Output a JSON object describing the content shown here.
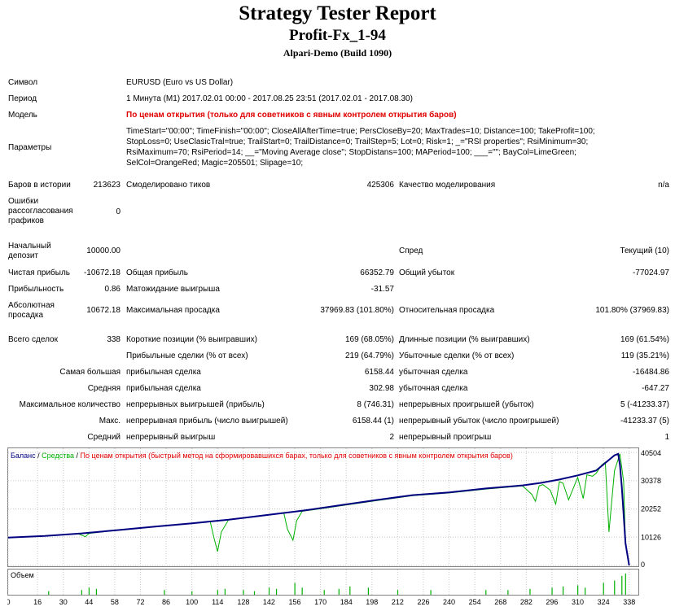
{
  "header": {
    "title": "Strategy Tester Report",
    "subtitle": "Profit-Fx_1-94",
    "server": "Alpari-Demo (Build 1090)"
  },
  "info": {
    "symbol_label": "Символ",
    "symbol_value": "EURUSD (Euro vs US Dollar)",
    "period_label": "Период",
    "period_value": "1 Минута (M1) 2017.02.01 00:00 - 2017.08.25 23:51 (2017.02.01 - 2017.08.30)",
    "model_label": "Модель",
    "model_value": "По ценам открытия (только для советников с явным контролем открытия баров)",
    "params_label": "Параметры",
    "params_line1": "TimeStart=\"00:00\"; TimeFinish=\"00:00\"; CloseAllAfterTime=true; PersCloseBy=20; MaxTrades=10; Distance=100; TakeProfit=100;",
    "params_line2": "StopLoss=0; UseClasicTral=true; TrailStart=0; TrailDistance=0; TrailStep=5; Lot=0; Risk=1; _=\"RSI properties\"; RsiMinimum=30;",
    "params_line3": "RsiMaximum=70; RsiPeriod=14; __=\"Moving Average close\"; StopDistans=100; MAPeriod=100; ___=\"\"; BayCol=LimeGreen;",
    "params_line4": "SelCol=OrangeRed; Magic=205501; Slipage=10;"
  },
  "stats": {
    "bars_label": "Баров в истории",
    "bars_value": "213623",
    "ticks_label": "Смоделировано тиков",
    "ticks_value": "425306",
    "quality_label": "Качество моделирования",
    "quality_value": "n/a",
    "errors_label_1": "Ошибки",
    "errors_label_2": "рассогласования",
    "errors_label_3": "графиков",
    "errors_value": "0",
    "deposit_label_1": "Начальный",
    "deposit_label_2": "депозит",
    "deposit_value": "10000.00",
    "spread_label": "Спред",
    "spread_value": "Текущий (10)",
    "net_label": "Чистая прибыль",
    "net_value": "-10672.18",
    "gross_profit_label": "Общая прибыль",
    "gross_profit_value": "66352.79",
    "gross_loss_label": "Общий убыток",
    "gross_loss_value": "-77024.97",
    "pf_label": "Прибыльность",
    "pf_value": "0.86",
    "expected_label": "Матожидание выигрыша",
    "expected_value": "-31.57",
    "abs_dd_label_1": "Абсолютная",
    "abs_dd_label_2": "просадка",
    "abs_dd_value": "10672.18",
    "max_dd_label": "Максимальная просадка",
    "max_dd_value": "37969.83 (101.80%)",
    "rel_dd_label": "Относительная просадка",
    "rel_dd_value": "101.80% (37969.83)",
    "total_trades_label": "Всего сделок",
    "total_trades_value": "338",
    "short_label": "Короткие позиции (% выигравших)",
    "short_value": "169 (68.05%)",
    "long_label": "Длинные позиции (% выигравших)",
    "long_value": "169 (61.54%)",
    "profit_trades_label": "Прибыльные сделки (% от всех)",
    "profit_trades_value": "219 (64.79%)",
    "loss_trades_label": "Убыточные сделки (% от всех)",
    "loss_trades_value": "119 (35.21%)",
    "largest_label": "Самая большая",
    "largest_profit_label": "прибыльная сделка",
    "largest_profit_value": "6158.44",
    "largest_loss_label": "убыточная сделка",
    "largest_loss_value": "-16484.86",
    "average_label": "Средняя",
    "average_profit_label": "прибыльная сделка",
    "average_profit_value": "302.98",
    "average_loss_label": "убыточная сделка",
    "average_loss_value": "-647.27",
    "maxcount_label": "Максимальное количество",
    "maxcount_wins_label": "непрерывных выигрышей (прибыль)",
    "maxcount_wins_value": "8 (746.31)",
    "maxcount_losses_label": "непрерывных проигрышей (убыток)",
    "maxcount_losses_value": "5 (-41233.37)",
    "max_label": "Макс.",
    "max_profit_label": "непрерывная прибыль (число выигрышей)",
    "max_profit_value": "6158.44 (1)",
    "max_loss_label": "непрерывный убыток (число проигрышей)",
    "max_loss_value": "-41233.37 (5)",
    "avg_label": "Средний",
    "avg_wins_label": "непрерывный выигрыш",
    "avg_wins_value": "2",
    "avg_losses_label": "непрерывный проигрыш",
    "avg_losses_value": "1"
  },
  "chart_data": {
    "type": "line",
    "legend_balance": "Баланс",
    "legend_sep": " / ",
    "legend_equity": "Средства",
    "legend_model": "По ценам открытия (быстрый метод на сформировавшихся барах, только для советников с явным контролем открытия баров)",
    "volume_label": "Объем",
    "colors": {
      "balance": "#000080",
      "equity": "#00b000",
      "model": "#e00000",
      "grid": "#c8c8c8",
      "volume": "#00b000"
    },
    "ylim": [
      0,
      42000
    ],
    "xlim": [
      0,
      343
    ],
    "y_ticks": [
      "40504",
      "30378",
      "20252",
      "10126",
      "0"
    ],
    "y_tick_values": [
      40504,
      30378,
      20252,
      10126,
      0
    ],
    "x_ticks": [
      "0",
      "16",
      "30",
      "44",
      "58",
      "72",
      "86",
      "100",
      "114",
      "128",
      "142",
      "156",
      "170",
      "184",
      "198",
      "212",
      "226",
      "240",
      "254",
      "268",
      "282",
      "296",
      "310",
      "324",
      "338"
    ],
    "x_tick_values": [
      0,
      16,
      30,
      44,
      58,
      72,
      86,
      100,
      114,
      128,
      142,
      156,
      170,
      184,
      198,
      212,
      226,
      240,
      254,
      268,
      282,
      296,
      310,
      324,
      338
    ],
    "series": [
      {
        "name": "Баланс",
        "x": [
          0,
          20,
          40,
          60,
          80,
          100,
          120,
          140,
          160,
          180,
          200,
          220,
          240,
          260,
          280,
          290,
          300,
          310,
          320,
          330,
          332,
          333,
          334,
          336,
          338
        ],
        "y": [
          10000,
          10600,
          11500,
          12700,
          13900,
          15100,
          16400,
          18000,
          19600,
          21500,
          23400,
          25200,
          26200,
          27600,
          28700,
          29600,
          30800,
          32300,
          34000,
          39500,
          40000,
          36000,
          28000,
          8000,
          0
        ]
      },
      {
        "name": "Средства",
        "x": [
          0,
          20,
          38,
          42,
          44,
          60,
          80,
          100,
          110,
          112,
          114,
          116,
          120,
          140,
          150,
          152,
          155,
          157,
          160,
          180,
          200,
          220,
          240,
          260,
          280,
          285,
          287,
          289,
          291,
          295,
          298,
          300,
          302,
          305,
          310,
          313,
          315,
          318,
          320,
          323,
          325,
          327,
          330,
          332,
          333,
          335,
          336,
          338
        ],
        "y": [
          10000,
          10600,
          11400,
          10300,
          11500,
          12700,
          13900,
          15100,
          15700,
          10000,
          5000,
          12000,
          16400,
          17900,
          18900,
          13000,
          9000,
          16000,
          19400,
          21300,
          23200,
          25000,
          26000,
          27400,
          28500,
          25500,
          23000,
          28500,
          29000,
          27000,
          22000,
          30000,
          29500,
          23500,
          31600,
          24000,
          32500,
          32000,
          33000,
          36000,
          37000,
          12000,
          34000,
          38000,
          40000,
          30000,
          8000,
          0
        ]
      }
    ],
    "volume": {
      "x": [
        22,
        40,
        44,
        48,
        85,
        100,
        114,
        118,
        128,
        134,
        142,
        146,
        156,
        160,
        172,
        180,
        186,
        196,
        212,
        230,
        260,
        272,
        284,
        296,
        302,
        310,
        314,
        324,
        330,
        334,
        336
      ],
      "h": [
        0.15,
        0.2,
        0.3,
        0.25,
        0.2,
        0.15,
        0.2,
        0.25,
        0.2,
        0.15,
        0.3,
        0.25,
        0.5,
        0.3,
        0.2,
        0.25,
        0.35,
        0.3,
        0.2,
        0.2,
        0.2,
        0.2,
        0.25,
        0.3,
        0.35,
        0.4,
        0.3,
        0.5,
        0.6,
        0.8,
        0.9
      ]
    }
  }
}
